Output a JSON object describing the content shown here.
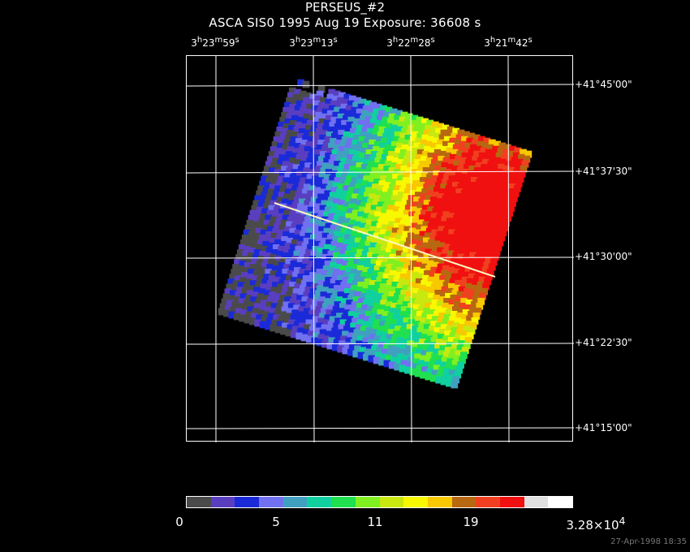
{
  "header": {
    "title": "PERSEUS_#2",
    "subtitle": "ASCA SIS0    1995 Aug 19     Exposure: 36608 s"
  },
  "ra_labels": [
    {
      "h": "3",
      "m": "23",
      "s": "59"
    },
    {
      "h": "3",
      "m": "23",
      "s": "13"
    },
    {
      "h": "3",
      "m": "22",
      "s": "28"
    },
    {
      "h": "3",
      "m": "21",
      "s": "42"
    }
  ],
  "dec_labels": [
    "+41°45'00\"",
    "+41°37'30\"",
    "+41°30'00\"",
    "+41°22'30\"",
    "+41°15'00\""
  ],
  "colorbar": {
    "colors": [
      "#4a4a4a",
      "#5a3ec0",
      "#1a2ad8",
      "#7070f0",
      "#40a0c0",
      "#10d0a0",
      "#20e050",
      "#80f020",
      "#c8e810",
      "#f8f800",
      "#f8c800",
      "#b86810",
      "#f04020",
      "#f01010",
      "#e0e0e0",
      "#ffffff"
    ],
    "label_0": "0",
    "label_1": "5",
    "label_2": "11",
    "label_3": "19",
    "label_max_base": "3.28×10",
    "label_max_exp": "4"
  },
  "footer": {
    "timestamp": "27-Apr-1998 18:35"
  }
}
